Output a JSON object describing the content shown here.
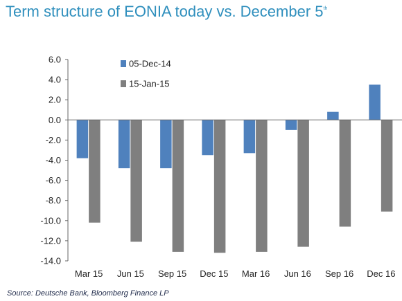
{
  "title": "Term structure of EONIA today vs. December 5",
  "title_sup": "th",
  "source": "Source: Deutsche Bank, Bloomberg Finance  LP",
  "colors": {
    "title": "#2f8fbd",
    "series1": "#4f81bd",
    "series2": "#7f7f7f"
  },
  "chart_data": {
    "type": "bar",
    "categories": [
      "Mar 15",
      "Jun 15",
      "Sep 15",
      "Dec 15",
      "Mar 16",
      "Jun 16",
      "Sep 16",
      "Dec 16"
    ],
    "series": [
      {
        "name": "05-Dec-14",
        "values": [
          -3.8,
          -4.8,
          -4.8,
          -3.5,
          -3.3,
          -1.0,
          0.8,
          3.5
        ]
      },
      {
        "name": "15-Jan-15",
        "values": [
          -10.2,
          -12.1,
          -13.1,
          -13.2,
          -13.1,
          -12.6,
          -10.6,
          -9.1
        ]
      }
    ],
    "ylim": [
      -14,
      6
    ],
    "yticks": [
      "6.0",
      "4.0",
      "2.0",
      "0.0",
      "-2.0",
      "-4.0",
      "-6.0",
      "-8.0",
      "-10.0",
      "-12.0",
      "-14.0"
    ],
    "ytick_values": [
      6,
      4,
      2,
      0,
      -2,
      -4,
      -6,
      -8,
      -10,
      -12,
      -14
    ],
    "legend_position": "top-left",
    "grid": false
  }
}
